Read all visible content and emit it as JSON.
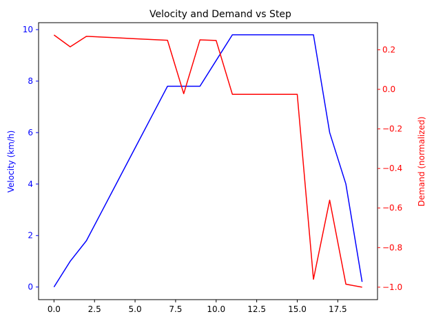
{
  "chart_data": {
    "type": "line",
    "title": "Velocity and Demand vs Step",
    "xlabel": "",
    "xlim": [
      -0.95,
      19.95
    ],
    "xticks": [
      0.0,
      2.5,
      5.0,
      7.5,
      10.0,
      12.5,
      15.0,
      17.5
    ],
    "xtick_labels": [
      "0.0",
      "2.5",
      "5.0",
      "7.5",
      "10.0",
      "12.5",
      "15.0",
      "17.5"
    ],
    "x": [
      0,
      1,
      2,
      3,
      4,
      5,
      6,
      7,
      8,
      9,
      10,
      11,
      12,
      13,
      14,
      15,
      16,
      17,
      18,
      19
    ],
    "grid": false,
    "left_axis": {
      "label": "Velocity (km/h)",
      "color": "#0000ff",
      "ylim": [
        -0.49,
        10.27
      ],
      "ticks": [
        0,
        2,
        4,
        6,
        8,
        10
      ],
      "tick_labels": [
        "0",
        "2",
        "4",
        "6",
        "8",
        "10"
      ]
    },
    "right_axis": {
      "label": "Demand (normalized)",
      "color": "#ff0000",
      "ylim": [
        -1.063,
        0.337
      ],
      "ticks": [
        -1.0,
        -0.8,
        -0.6,
        -0.4,
        -0.2,
        0.0,
        0.2
      ],
      "tick_labels": [
        "−1.0",
        "−0.8",
        "−0.6",
        "−0.4",
        "−0.2",
        "0.0",
        "0.2"
      ]
    },
    "series": [
      {
        "axis": "left",
        "color": "#0000ff",
        "values": [
          0.0,
          1.0,
          1.8,
          3.0,
          4.2,
          5.4,
          6.6,
          7.8,
          7.8,
          7.8,
          8.8,
          9.8,
          9.8,
          9.8,
          9.8,
          9.8,
          9.8,
          6.0,
          4.0,
          0.2
        ]
      },
      {
        "axis": "right",
        "color": "#ff0000",
        "values": [
          0.275,
          0.215,
          0.268,
          0.264,
          0.26,
          0.256,
          0.252,
          0.248,
          -0.022,
          0.25,
          0.247,
          -0.025,
          -0.025,
          -0.025,
          -0.025,
          -0.025,
          -0.96,
          -0.56,
          -0.985,
          -1.0
        ]
      }
    ]
  }
}
